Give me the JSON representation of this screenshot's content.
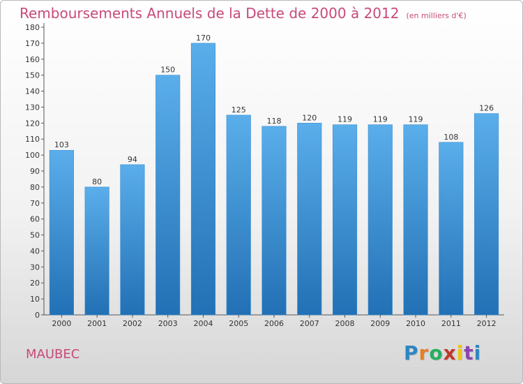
{
  "title": "Remboursements Annuels de la Dette de 2000 à 2012",
  "subtitle": "(en milliers d'€)",
  "commune": "MAUBEC",
  "logo": {
    "letters": [
      "P",
      "r",
      "o",
      "x",
      "i",
      "t",
      "i"
    ],
    "colors": [
      "#2e86c1",
      "#e67e22",
      "#27ae60",
      "#c0392b",
      "#f1c40f",
      "#8e44ad",
      "#2e86c1"
    ]
  },
  "colors": {
    "accent": "#c8497a",
    "bar_top": "#5aaeea",
    "bar_bottom": "#2270b5"
  },
  "chart_data": {
    "type": "bar",
    "categories": [
      "2000",
      "2001",
      "2002",
      "2003",
      "2004",
      "2005",
      "2006",
      "2007",
      "2008",
      "2009",
      "2010",
      "2011",
      "2012"
    ],
    "values": [
      103,
      80,
      94,
      150,
      170,
      125,
      118,
      120,
      119,
      119,
      119,
      108,
      126
    ],
    "ylim": [
      0,
      180
    ],
    "y_ticks": [
      0,
      10,
      20,
      30,
      40,
      50,
      60,
      70,
      80,
      90,
      100,
      110,
      120,
      130,
      140,
      150,
      160,
      170,
      180
    ],
    "grid": false,
    "xlabel": "",
    "ylabel": ""
  }
}
